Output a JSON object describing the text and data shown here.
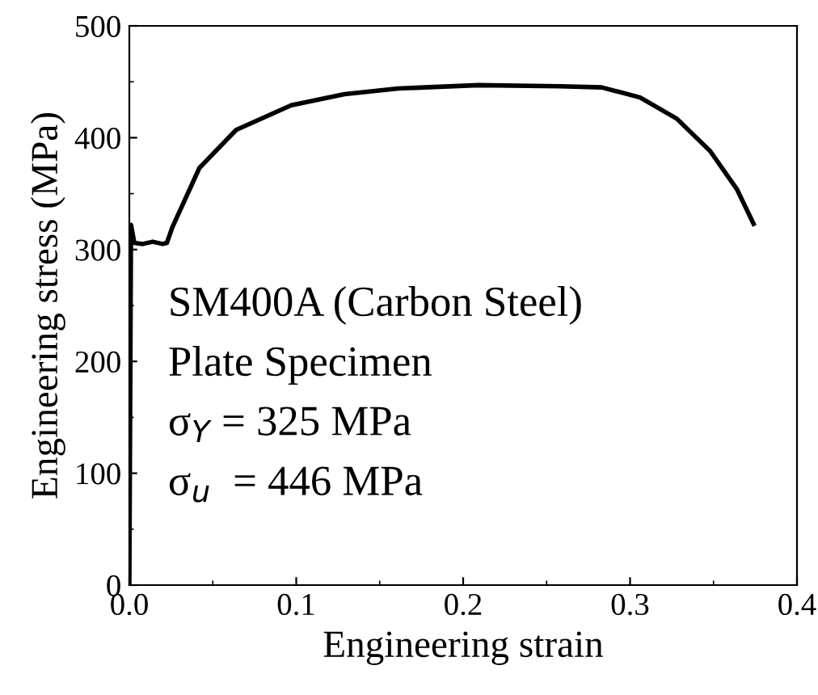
{
  "chart_data": {
    "type": "line",
    "xlabel": "Engineering strain",
    "ylabel": "Engineering stress (MPa)",
    "series": [
      {
        "color": "#000000",
        "x": [
          0,
          0.001,
          0.003,
          0.008,
          0.014,
          0.02,
          0.0225,
          0.0258,
          0.042,
          0.064,
          0.097,
          0.129,
          0.161,
          0.209,
          0.258,
          0.283,
          0.306,
          0.328,
          0.348,
          0.364,
          0.374
        ],
        "values": [
          0,
          322,
          306,
          305,
          307,
          305,
          306,
          320,
          373,
          407,
          429,
          439,
          444,
          447,
          446,
          445,
          436,
          417,
          388,
          354,
          323
        ]
      }
    ],
    "xlim": [
      0,
      0.4
    ],
    "xticks": [
      {
        "value": 0,
        "label": "0.0"
      },
      0.1,
      0.2,
      0.3,
      0.4
    ],
    "ylim": [
      0,
      500
    ],
    "yticks": [
      0,
      100,
      200,
      300,
      400,
      500
    ],
    "annotations": [
      "SM400A (Carbon Steel)",
      "Plate Specimen",
      "σ$_{Y}$ = 325 MPa",
      "σ$_{u}$  = 446 MPa"
    ],
    "grid": false,
    "legend": false,
    "marker": "none",
    "line_style": "solid"
  }
}
